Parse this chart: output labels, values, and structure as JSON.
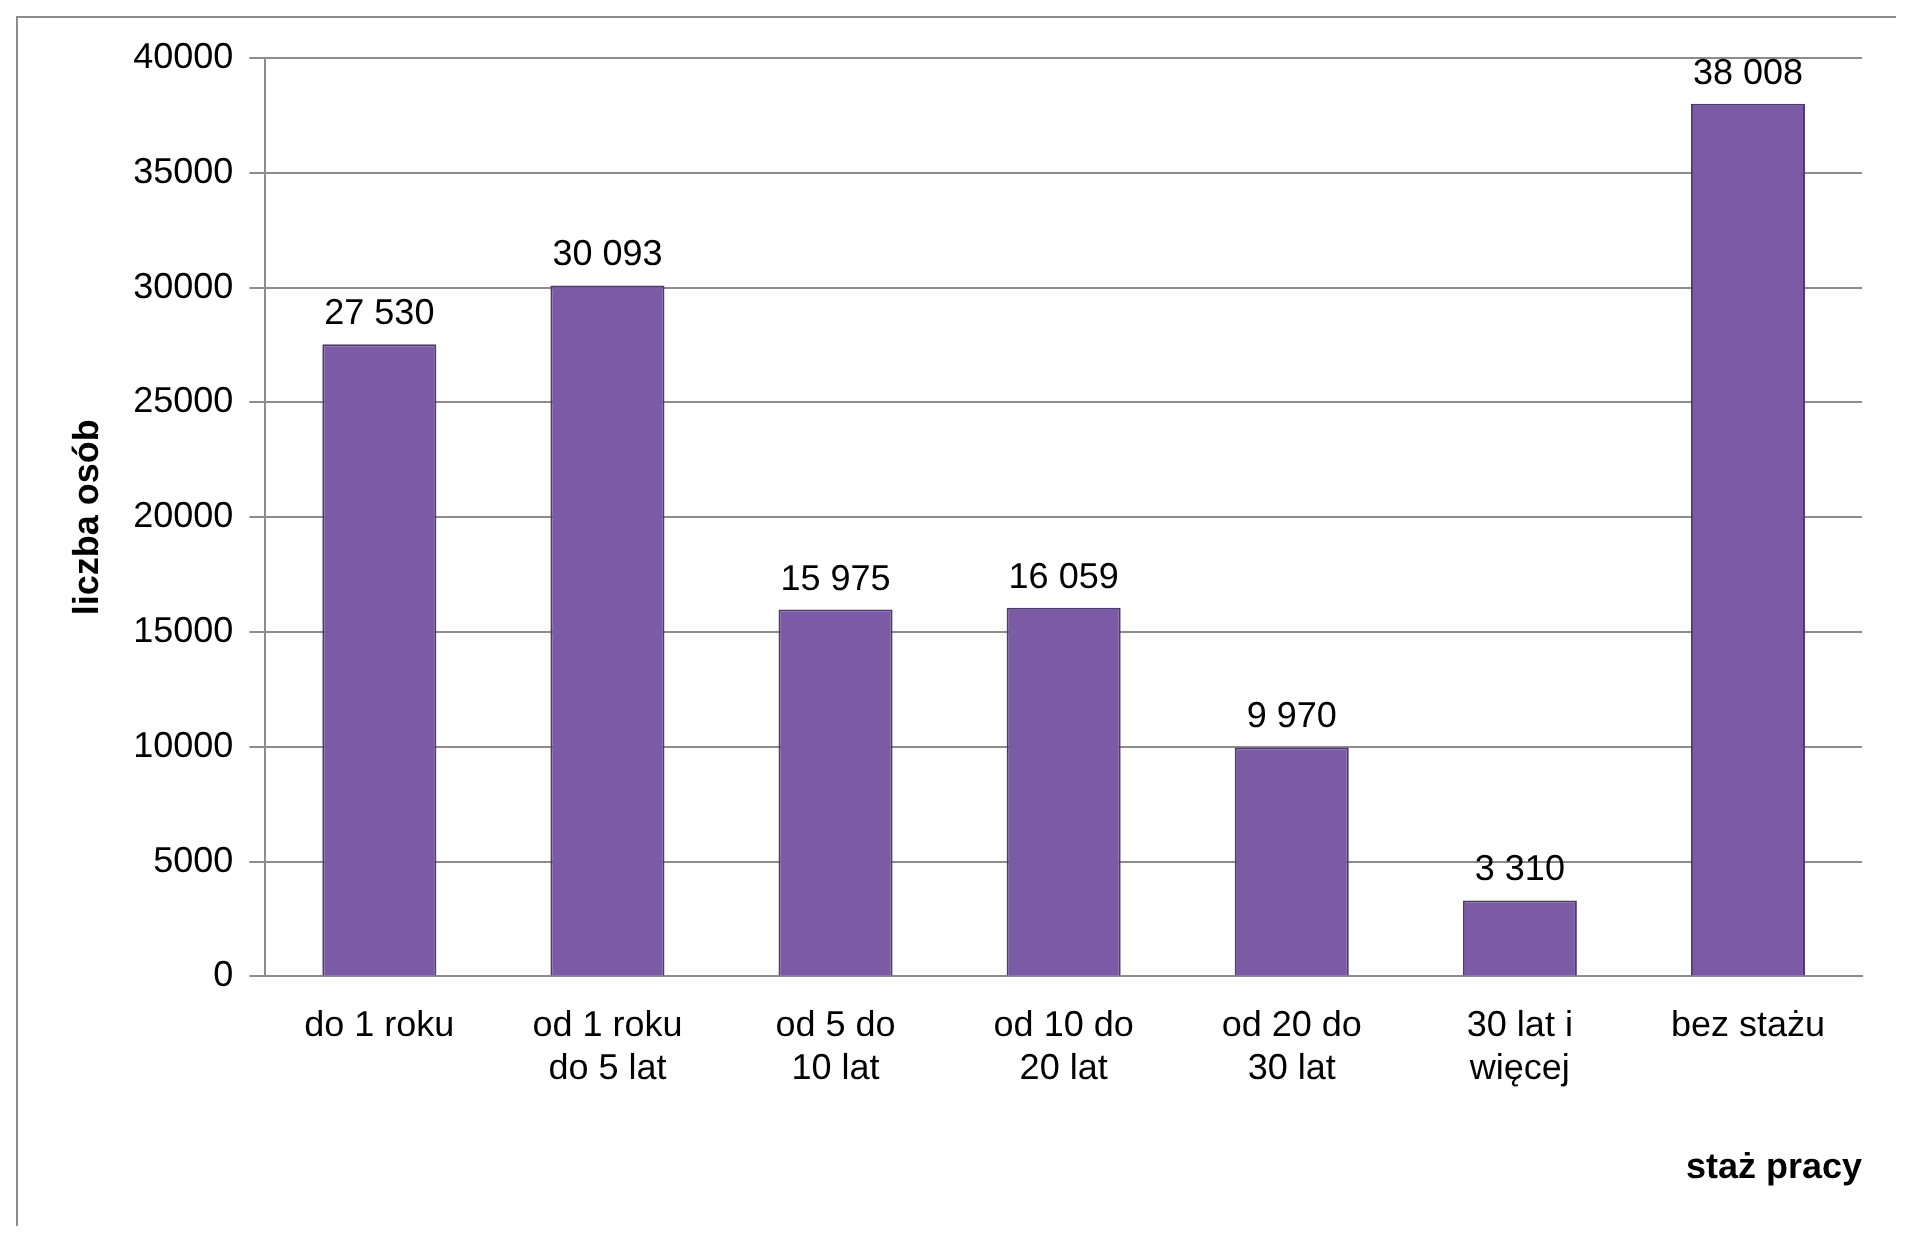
{
  "chart_data": {
    "type": "bar",
    "xlabel": "staż pracy",
    "ylabel": "liczba osób",
    "categories": [
      "do 1 roku",
      "od 1 roku do 5 lat",
      "od 5 do 10 lat",
      "od 10 do 20 lat",
      "od 20 do 30 lat",
      "30 lat i więcej",
      "bez stażu"
    ],
    "values": [
      27530,
      30093,
      15975,
      16059,
      9970,
      3310,
      38008
    ],
    "value_labels": [
      "27 530",
      "30 093",
      "15 975",
      "16 059",
      "9 970",
      "3 310",
      "38 008"
    ],
    "color": "#7b5aa6",
    "ylim": [
      0,
      40000
    ],
    "yticks": [
      0,
      5000,
      10000,
      15000,
      20000,
      25000,
      30000,
      35000,
      40000
    ],
    "grid": "y",
    "legend": false
  }
}
